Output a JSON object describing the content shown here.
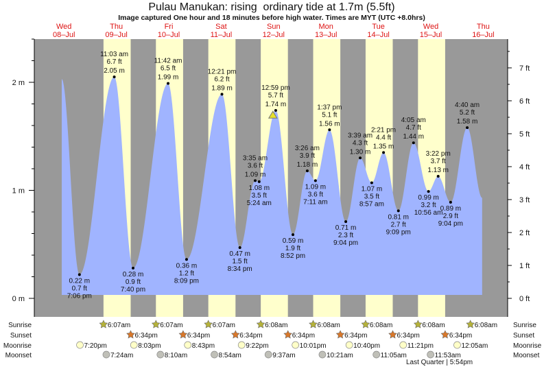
{
  "chart_data": {
    "type": "area",
    "title": "Pulau Manukan: rising  ordinary tide at 1.7m (5.5ft)",
    "subtitle": "Image captured One hour and 18 minutes before high water. Times are MYT (UTC +8.0hrs)",
    "colors": {
      "water": "#a0b4ff",
      "night": "#999999",
      "day": "#ffffcc",
      "day_label": "#dd1111",
      "sunrise": "#b5b23a",
      "sunset": "#d9782a",
      "moonrise": "#ffffc8",
      "moonset": "#c0c0b8",
      "current": "#e6e02a"
    },
    "days": [
      {
        "dow": "Wed",
        "date": "08–Jul"
      },
      {
        "dow": "Thu",
        "date": "09–Jul"
      },
      {
        "dow": "Fri",
        "date": "10–Jul"
      },
      {
        "dow": "Sat",
        "date": "11–Jul"
      },
      {
        "dow": "Sun",
        "date": "12–Jul"
      },
      {
        "dow": "Mon",
        "date": "13–Jul"
      },
      {
        "dow": "Tue",
        "date": "14–Jul"
      },
      {
        "dow": "Wed",
        "date": "15–Jul"
      },
      {
        "dow": "Thu",
        "date": "16–Jul"
      }
    ],
    "y_left": {
      "unit": "m",
      "ticks": [
        "0 m",
        "1 m",
        "2 m"
      ],
      "range_m": [
        0,
        2.4
      ]
    },
    "y_right": {
      "unit": "ft",
      "ticks": [
        "0 ft",
        "1 ft",
        "2 ft",
        "3 ft",
        "4 ft",
        "5 ft",
        "6 ft",
        "7 ft"
      ]
    },
    "curve_start": {
      "day": 0,
      "time": "11:00",
      "m": 2.03
    },
    "curve_end": {
      "day": 8,
      "time": "11:30",
      "m": 0.93
    },
    "extremes": [
      {
        "day": 0,
        "t": "19:06",
        "type": "low",
        "m": "0.22 m",
        "ft": "0.7 ft",
        "time": "7:06 pm",
        "v": 0.22
      },
      {
        "day": 1,
        "t": "11:03",
        "type": "high",
        "m": "2.05 m",
        "ft": "6.7 ft",
        "time": "11:03 am",
        "v": 2.05
      },
      {
        "day": 1,
        "t": "19:40",
        "type": "low",
        "m": "0.28 m",
        "ft": "0.9 ft",
        "time": "7:40 pm",
        "v": 0.28
      },
      {
        "day": 2,
        "t": "11:42",
        "type": "high",
        "m": "1.99 m",
        "ft": "6.5 ft",
        "time": "11:42 am",
        "v": 1.99
      },
      {
        "day": 2,
        "t": "20:09",
        "type": "low",
        "m": "0.36 m",
        "ft": "1.2 ft",
        "time": "8:09 pm",
        "v": 0.36
      },
      {
        "day": 3,
        "t": "12:21",
        "type": "high",
        "m": "1.89 m",
        "ft": "6.2 ft",
        "time": "12:21 pm",
        "v": 1.89
      },
      {
        "day": 3,
        "t": "20:34",
        "type": "low",
        "m": "0.47 m",
        "ft": "1.5 ft",
        "time": "8:34 pm",
        "v": 0.47
      },
      {
        "day": 4,
        "t": "03:35",
        "type": "high",
        "m": "1.09 m",
        "ft": "3.6 ft",
        "time": "3:35 am",
        "v": 1.09
      },
      {
        "day": 4,
        "t": "05:24",
        "type": "low",
        "m": "1.08 m",
        "ft": "3.5 ft",
        "time": "5:24 am",
        "v": 1.08
      },
      {
        "day": 4,
        "t": "12:59",
        "type": "high",
        "m": "1.74 m",
        "ft": "5.7 ft",
        "time": "12:59 pm",
        "v": 1.74
      },
      {
        "day": 4,
        "t": "20:52",
        "type": "low",
        "m": "0.59 m",
        "ft": "1.9 ft",
        "time": "8:52 pm",
        "v": 0.59
      },
      {
        "day": 5,
        "t": "03:26",
        "type": "high",
        "m": "1.18 m",
        "ft": "3.9 ft",
        "time": "3:26 am",
        "v": 1.18
      },
      {
        "day": 5,
        "t": "07:11",
        "type": "low",
        "m": "1.09 m",
        "ft": "3.6 ft",
        "time": "7:11 am",
        "v": 1.09
      },
      {
        "day": 5,
        "t": "13:37",
        "type": "high",
        "m": "1.56 m",
        "ft": "5.1 ft",
        "time": "1:37 pm",
        "v": 1.56
      },
      {
        "day": 5,
        "t": "21:04",
        "type": "low",
        "m": "0.71 m",
        "ft": "2.3 ft",
        "time": "9:04 pm",
        "v": 0.71
      },
      {
        "day": 6,
        "t": "03:39",
        "type": "high",
        "m": "1.30 m",
        "ft": "4.3 ft",
        "time": "3:39 am",
        "v": 1.3
      },
      {
        "day": 6,
        "t": "08:57",
        "type": "low",
        "m": "1.07 m",
        "ft": "3.5 ft",
        "time": "8:57 am",
        "v": 1.07
      },
      {
        "day": 6,
        "t": "14:21",
        "type": "high",
        "m": "1.35 m",
        "ft": "4.4 ft",
        "time": "2:21 pm",
        "v": 1.35
      },
      {
        "day": 6,
        "t": "21:09",
        "type": "low",
        "m": "0.81 m",
        "ft": "2.7 ft",
        "time": "9:09 pm",
        "v": 0.81
      },
      {
        "day": 7,
        "t": "04:05",
        "type": "high",
        "m": "1.44 m",
        "ft": "4.7 ft",
        "time": "4:05 am",
        "v": 1.44
      },
      {
        "day": 7,
        "t": "10:56",
        "type": "low",
        "m": "0.99 m",
        "ft": "3.2 ft",
        "time": "10:56 am",
        "v": 0.99
      },
      {
        "day": 7,
        "t": "15:22",
        "type": "high",
        "m": "1.13 m",
        "ft": "3.7 ft",
        "time": "3:22 pm",
        "v": 1.13
      },
      {
        "day": 7,
        "t": "21:04",
        "type": "low",
        "m": "0.89 m",
        "ft": "2.9 ft",
        "time": "9:04 pm",
        "v": 0.89
      },
      {
        "day": 8,
        "t": "04:40",
        "type": "high",
        "m": "1.58 m",
        "ft": "5.2 ft",
        "time": "4:40 am",
        "v": 1.58
      }
    ],
    "current": {
      "day": 4,
      "t": "11:41",
      "m": 1.7
    },
    "rows": {
      "sunrise": {
        "label": "Sunrise",
        "events": [
          {
            "day": 1,
            "t": "06:07",
            "text": "6:07am"
          },
          {
            "day": 2,
            "t": "06:07",
            "text": "6:07am"
          },
          {
            "day": 3,
            "t": "06:07",
            "text": "6:07am"
          },
          {
            "day": 4,
            "t": "06:08",
            "text": "6:08am"
          },
          {
            "day": 5,
            "t": "06:08",
            "text": "6:08am"
          },
          {
            "day": 6,
            "t": "06:08",
            "text": "6:08am"
          },
          {
            "day": 7,
            "t": "06:08",
            "text": "6:08am"
          },
          {
            "day": 8,
            "t": "06:08",
            "text": "6:08am"
          }
        ]
      },
      "sunset": {
        "label": "Sunset",
        "events": [
          {
            "day": 1,
            "t": "18:34",
            "text": "6:34pm"
          },
          {
            "day": 2,
            "t": "18:34",
            "text": "6:34pm"
          },
          {
            "day": 3,
            "t": "18:34",
            "text": "6:34pm"
          },
          {
            "day": 4,
            "t": "18:34",
            "text": "6:34pm"
          },
          {
            "day": 5,
            "t": "18:34",
            "text": "6:34pm"
          },
          {
            "day": 6,
            "t": "18:34",
            "text": "6:34pm"
          },
          {
            "day": 7,
            "t": "18:34",
            "text": "6:34pm"
          }
        ]
      },
      "moonrise": {
        "label": "Moonrise",
        "events": [
          {
            "day": 0,
            "t": "19:20",
            "text": "7:20pm"
          },
          {
            "day": 1,
            "t": "20:03",
            "text": "8:03pm"
          },
          {
            "day": 2,
            "t": "20:43",
            "text": "8:43pm"
          },
          {
            "day": 3,
            "t": "21:22",
            "text": "9:22pm"
          },
          {
            "day": 4,
            "t": "22:01",
            "text": "10:01pm"
          },
          {
            "day": 5,
            "t": "22:40",
            "text": "10:40pm"
          },
          {
            "day": 6,
            "t": "23:21",
            "text": "11:21pm"
          },
          {
            "day": 8,
            "t": "00:05",
            "text": "12:05am"
          }
        ]
      },
      "moonset": {
        "label": "Moonset",
        "events": [
          {
            "day": 1,
            "t": "07:24",
            "text": "7:24am"
          },
          {
            "day": 2,
            "t": "08:10",
            "text": "8:10am"
          },
          {
            "day": 3,
            "t": "08:54",
            "text": "8:54am"
          },
          {
            "day": 4,
            "t": "09:37",
            "text": "9:37am"
          },
          {
            "day": 5,
            "t": "10:21",
            "text": "10:21am"
          },
          {
            "day": 6,
            "t": "11:05",
            "text": "11:05am"
          },
          {
            "day": 7,
            "t": "11:53",
            "text": "11:53am"
          }
        ]
      }
    },
    "moon_phase": "Last Quarter | 5:54pm"
  }
}
